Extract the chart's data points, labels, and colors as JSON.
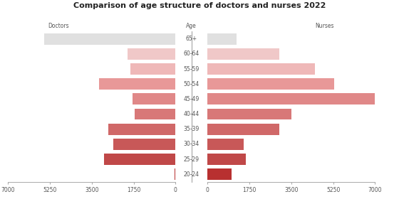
{
  "title": "Comparison of age structure of doctors and nurses 2022",
  "age_groups": [
    "65+",
    "60-64",
    "55-59",
    "50-54",
    "45-49",
    "40-44",
    "35-39",
    "30-34",
    "25-29",
    "20-24"
  ],
  "doctors": [
    5500,
    2000,
    1900,
    3200,
    1800,
    1700,
    2800,
    2600,
    3000,
    50
  ],
  "nurses": [
    1200,
    3000,
    4500,
    5300,
    7000,
    3500,
    3000,
    1500,
    1600,
    1000
  ],
  "doctor_colors": [
    "#e0e0e0",
    "#f0c8c8",
    "#efb8b8",
    "#e89898",
    "#e08888",
    "#d87878",
    "#d06868",
    "#c85858",
    "#c04848",
    "#b83030"
  ],
  "nurse_colors": [
    "#e0e0e0",
    "#f0c8c8",
    "#efb8b8",
    "#e89898",
    "#e08888",
    "#d87878",
    "#d06868",
    "#c85858",
    "#c04848",
    "#b83030"
  ],
  "xlim": 7000,
  "xlabel_left": "Doctors",
  "xlabel_center": "Age",
  "xlabel_right": "Nurses",
  "background_color": "#ffffff",
  "bar_height": 0.75,
  "spine_color": "#aaaaaa",
  "tick_color": "#555555",
  "tick_fontsize": 5.5,
  "title_fontsize": 8,
  "label_fontsize": 5.5
}
